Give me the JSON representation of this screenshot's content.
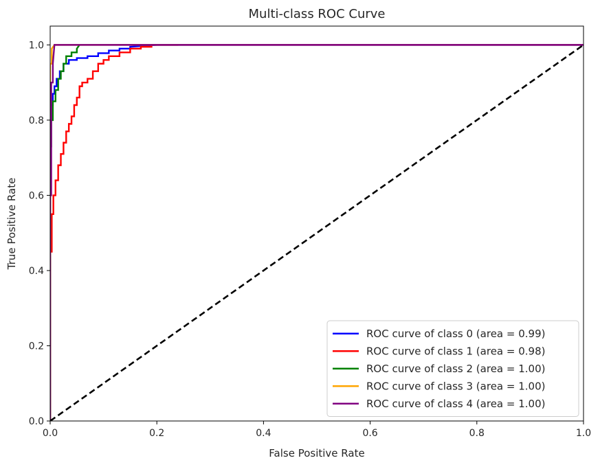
{
  "chart_data": {
    "type": "line",
    "title": "Multi-class ROC Curve",
    "xlabel": "False Positive Rate",
    "ylabel": "True Positive Rate",
    "xlim": [
      0.0,
      1.0
    ],
    "ylim": [
      0.0,
      1.05
    ],
    "xticks": [
      0.0,
      0.2,
      0.4,
      0.6,
      0.8,
      1.0
    ],
    "yticks": [
      0.0,
      0.2,
      0.4,
      0.6,
      0.8,
      1.0
    ],
    "xtick_labels": [
      "0.0",
      "0.2",
      "0.4",
      "0.6",
      "0.8",
      "1.0"
    ],
    "ytick_labels": [
      "0.0",
      "0.2",
      "0.4",
      "0.6",
      "0.8",
      "1.0"
    ],
    "grid": false,
    "legend_position": "lower-right",
    "series": [
      {
        "name": "ROC curve of class 0 (area = 0.99)",
        "color": "#0000ff",
        "dashed": false,
        "x": [
          0.0,
          0.0,
          0.002,
          0.002,
          0.005,
          0.005,
          0.008,
          0.008,
          0.012,
          0.012,
          0.018,
          0.018,
          0.025,
          0.025,
          0.035,
          0.035,
          0.05,
          0.05,
          0.07,
          0.07,
          0.09,
          0.09,
          0.11,
          0.11,
          0.13,
          0.13,
          0.15,
          0.15,
          0.2,
          0.3,
          1.0
        ],
        "y": [
          0.0,
          0.8,
          0.8,
          0.84,
          0.84,
          0.87,
          0.87,
          0.89,
          0.89,
          0.91,
          0.91,
          0.93,
          0.93,
          0.95,
          0.95,
          0.96,
          0.96,
          0.965,
          0.965,
          0.97,
          0.97,
          0.978,
          0.978,
          0.985,
          0.985,
          0.99,
          0.99,
          0.995,
          1.0,
          1.0,
          1.0
        ]
      },
      {
        "name": "ROC curve of class 1 (area = 0.98)",
        "color": "#ff0000",
        "dashed": false,
        "x": [
          0.0,
          0.0,
          0.003,
          0.003,
          0.006,
          0.006,
          0.01,
          0.01,
          0.015,
          0.015,
          0.02,
          0.02,
          0.025,
          0.025,
          0.03,
          0.03,
          0.035,
          0.035,
          0.04,
          0.04,
          0.045,
          0.045,
          0.05,
          0.05,
          0.055,
          0.055,
          0.06,
          0.06,
          0.07,
          0.07,
          0.08,
          0.08,
          0.09,
          0.09,
          0.1,
          0.1,
          0.11,
          0.11,
          0.13,
          0.13,
          0.15,
          0.15,
          0.17,
          0.17,
          0.19,
          0.19,
          0.24
        ],
        "y": [
          0.0,
          0.45,
          0.45,
          0.55,
          0.55,
          0.6,
          0.6,
          0.64,
          0.64,
          0.68,
          0.68,
          0.71,
          0.71,
          0.74,
          0.74,
          0.77,
          0.77,
          0.79,
          0.79,
          0.81,
          0.81,
          0.84,
          0.84,
          0.86,
          0.86,
          0.89,
          0.89,
          0.9,
          0.9,
          0.91,
          0.91,
          0.93,
          0.93,
          0.95,
          0.95,
          0.96,
          0.96,
          0.97,
          0.97,
          0.98,
          0.98,
          0.99,
          0.99,
          0.995,
          0.995,
          1.0,
          1.0
        ]
      },
      {
        "name": "ROC curve of class 2 (area = 1.00)",
        "color": "#008000",
        "dashed": false,
        "x": [
          0.0,
          0.0,
          0.002,
          0.002,
          0.005,
          0.005,
          0.01,
          0.01,
          0.015,
          0.015,
          0.02,
          0.02,
          0.025,
          0.025,
          0.03,
          0.03,
          0.04,
          0.04,
          0.05,
          0.05,
          0.055
        ],
        "y": [
          0.0,
          0.73,
          0.73,
          0.8,
          0.8,
          0.85,
          0.85,
          0.88,
          0.88,
          0.91,
          0.91,
          0.93,
          0.93,
          0.95,
          0.95,
          0.97,
          0.97,
          0.98,
          0.98,
          0.99,
          1.0
        ]
      },
      {
        "name": "ROC curve of class 3 (area = 1.00)",
        "color": "#ffa500",
        "dashed": false,
        "x": [
          0.0,
          0.0,
          0.003,
          0.003,
          0.008,
          1.0
        ],
        "y": [
          0.0,
          0.95,
          0.95,
          0.99,
          1.0,
          1.0
        ]
      },
      {
        "name": "ROC curve of class 4 (area = 1.00)",
        "color": "#800080",
        "dashed": false,
        "x": [
          0.0,
          0.0,
          0.002,
          0.002,
          0.005,
          0.005,
          0.008,
          1.0
        ],
        "y": [
          0.0,
          0.6,
          0.6,
          0.9,
          0.9,
          0.95,
          1.0,
          1.0
        ]
      },
      {
        "name": "",
        "color": "#000000",
        "dashed": true,
        "x": [
          0.0,
          1.0
        ],
        "y": [
          0.0,
          1.0
        ]
      }
    ]
  }
}
